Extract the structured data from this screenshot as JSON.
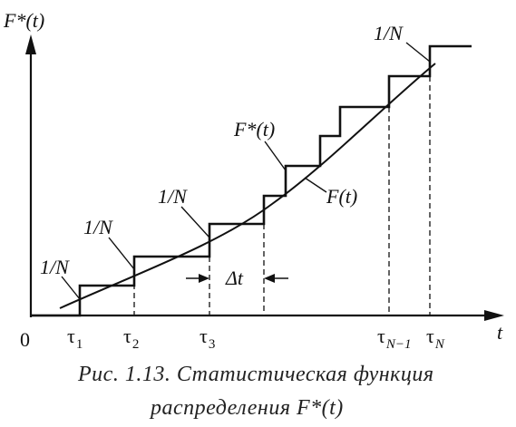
{
  "axes": {
    "y_label": "F*(t)",
    "x_label": "t",
    "origin": "0"
  },
  "ticks": {
    "tau": "τ",
    "sub_1": "1",
    "sub_2": "2",
    "sub_3": "3",
    "sub_n_minus_1": "N−1",
    "sub_n": "N"
  },
  "labels": {
    "step_1": "1/N",
    "step_2": "1/N",
    "step_3": "1/N",
    "step_top": "1/N",
    "empirical_curve": "F*(t)",
    "theoretical_curve": "F(t)",
    "delta_t": "Δt"
  },
  "caption": {
    "line1": "Рис.  1.13.  Статистическая  функция",
    "line2": "распределения    F*(t)"
  },
  "colors": {
    "ink": "#111111",
    "background": "#ffffff"
  }
}
